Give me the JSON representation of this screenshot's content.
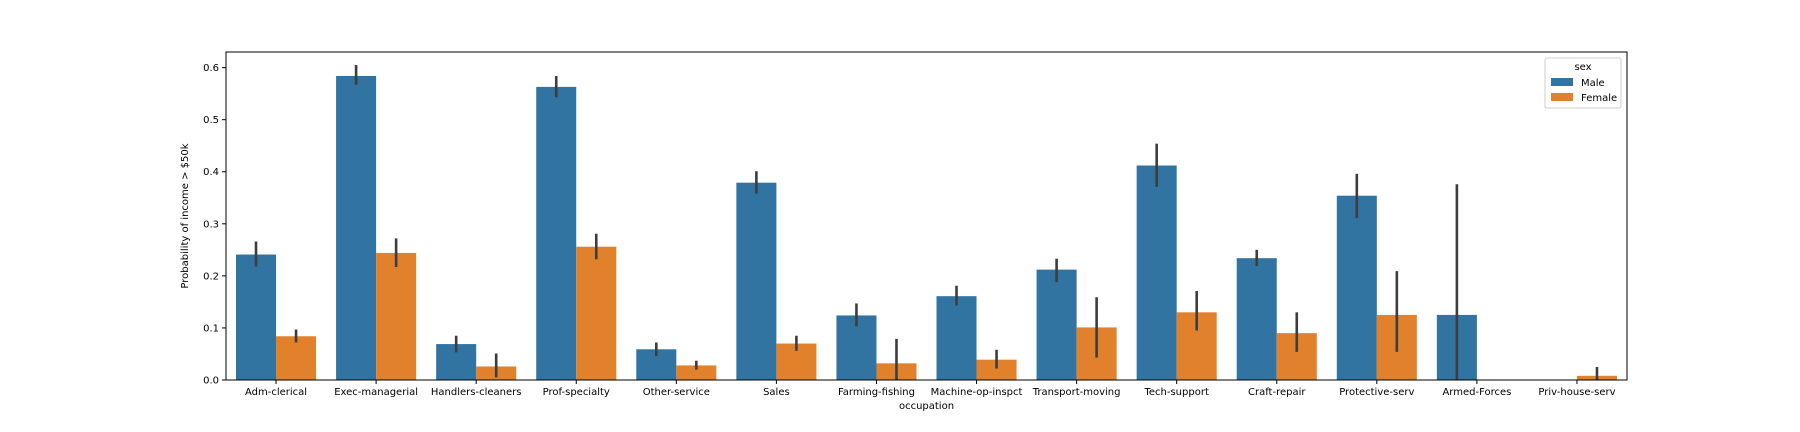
{
  "chart_data": {
    "type": "bar",
    "title": "",
    "xlabel": "occupation",
    "ylabel": "Probability of income > $50k",
    "ylim": [
      0,
      0.63
    ],
    "yticks": [
      "0.0",
      "0.1",
      "0.2",
      "0.3",
      "0.4",
      "0.5",
      "0.6"
    ],
    "grid": false,
    "legend": {
      "title": "sex",
      "placement": "top-right"
    },
    "categories": [
      "Adm-clerical",
      "Exec-managerial",
      "Handlers-cleaners",
      "Prof-specialty",
      "Other-service",
      "Sales",
      "Farming-fishing",
      "Machine-op-inspct",
      "Transport-moving",
      "Tech-support",
      "Craft-repair",
      "Protective-serv",
      "Armed-Forces",
      "Priv-house-serv"
    ],
    "series": [
      {
        "name": "Male",
        "color": "#3274a1",
        "values": [
          0.241,
          0.584,
          0.069,
          0.563,
          0.059,
          0.379,
          0.124,
          0.161,
          0.212,
          0.412,
          0.234,
          0.354,
          0.125,
          null
        ],
        "ci_low": [
          0.218,
          0.567,
          0.053,
          0.543,
          0.046,
          0.358,
          0.103,
          0.143,
          0.188,
          0.371,
          0.219,
          0.311,
          0.0,
          null
        ],
        "ci_high": [
          0.266,
          0.605,
          0.085,
          0.584,
          0.072,
          0.401,
          0.147,
          0.181,
          0.233,
          0.454,
          0.25,
          0.396,
          0.376,
          null
        ]
      },
      {
        "name": "Female",
        "color": "#e1812c",
        "values": [
          0.084,
          0.244,
          0.026,
          0.256,
          0.028,
          0.07,
          0.032,
          0.039,
          0.101,
          0.13,
          0.09,
          0.125,
          null,
          0.008
        ],
        "ci_low": [
          0.072,
          0.217,
          0.005,
          0.232,
          0.02,
          0.056,
          0.0,
          0.022,
          0.043,
          0.095,
          0.054,
          0.054,
          null,
          0.0
        ],
        "ci_high": [
          0.097,
          0.272,
          0.051,
          0.281,
          0.037,
          0.085,
          0.079,
          0.058,
          0.159,
          0.171,
          0.13,
          0.209,
          null,
          0.025
        ]
      }
    ]
  }
}
